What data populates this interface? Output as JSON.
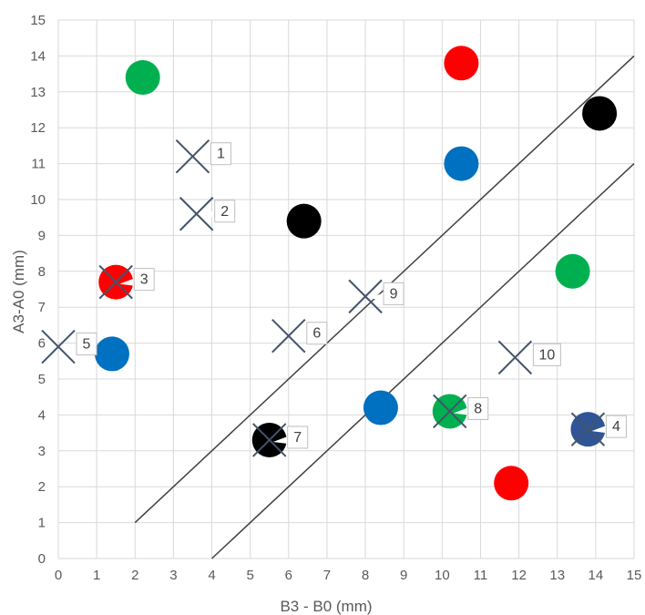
{
  "chart_data": {
    "type": "scatter",
    "xlabel": "B3 - B0 (mm)",
    "ylabel": "A3-A0 (mm)",
    "xlim": [
      0,
      15
    ],
    "ylim": [
      0,
      15
    ],
    "xticks": [
      "0",
      "1",
      "2",
      "3",
      "4",
      "5",
      "6",
      "7",
      "8",
      "9",
      "10",
      "11",
      "12",
      "13",
      "14",
      "15"
    ],
    "yticks": [
      "0",
      "1",
      "2",
      "3",
      "4",
      "5",
      "6",
      "7",
      "8",
      "9",
      "10",
      "11",
      "12",
      "13",
      "14",
      "15"
    ],
    "grid": true,
    "circles": [
      {
        "x": 2.2,
        "y": 13.4,
        "color": "#00b050"
      },
      {
        "x": 10.5,
        "y": 13.8,
        "color": "#ff0000"
      },
      {
        "x": 14.1,
        "y": 12.4,
        "color": "#000000"
      },
      {
        "x": 10.5,
        "y": 11.0,
        "color": "#0070c0"
      },
      {
        "x": 6.4,
        "y": 9.4,
        "color": "#000000"
      },
      {
        "x": 1.5,
        "y": 7.7,
        "color": "#ff0000"
      },
      {
        "x": 13.4,
        "y": 8.0,
        "color": "#00b050"
      },
      {
        "x": 1.4,
        "y": 5.7,
        "color": "#0070c0"
      },
      {
        "x": 8.4,
        "y": 4.2,
        "color": "#0070c0"
      },
      {
        "x": 10.2,
        "y": 4.1,
        "color": "#00b050"
      },
      {
        "x": 5.5,
        "y": 3.3,
        "color": "#000000"
      },
      {
        "x": 13.8,
        "y": 3.6,
        "color": "#2f5597"
      },
      {
        "x": 11.8,
        "y": 2.1,
        "color": "#ff0000"
      }
    ],
    "crosses": [
      {
        "label": "1",
        "x": 3.5,
        "y": 11.2
      },
      {
        "label": "2",
        "x": 3.6,
        "y": 9.6
      },
      {
        "label": "3",
        "x": 1.5,
        "y": 7.7
      },
      {
        "label": "4",
        "x": 13.8,
        "y": 3.6
      },
      {
        "label": "5",
        "x": 0.0,
        "y": 5.9
      },
      {
        "label": "6",
        "x": 6.0,
        "y": 6.2
      },
      {
        "label": "7",
        "x": 5.5,
        "y": 3.3
      },
      {
        "label": "8",
        "x": 10.2,
        "y": 4.1
      },
      {
        "label": "9",
        "x": 8.0,
        "y": 7.3
      },
      {
        "label": "10",
        "x": 11.9,
        "y": 5.6
      }
    ],
    "lines": [
      {
        "x1": 2,
        "y1": 1,
        "x2": 15,
        "y2": 14
      },
      {
        "x1": 4,
        "y1": 0,
        "x2": 15,
        "y2": 11
      }
    ],
    "colors": {
      "grid": "#d9d9d9",
      "cross": "#44546a",
      "line": "#404040",
      "label_box": "#ffffff",
      "label_border": "#bfbfbf"
    }
  }
}
